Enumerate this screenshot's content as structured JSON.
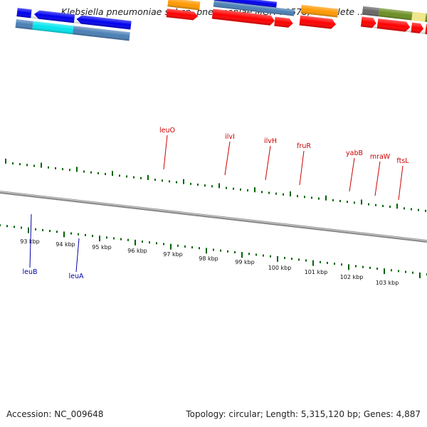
{
  "title": "Klebsiella pneumoniae subsp. pneumoniae MGH 78578, complete ...",
  "footer": {
    "accession": "Accession: NC_009648",
    "summary": "Topology: circular; Length: 5,315,120 bp; Genes: 4,887"
  },
  "scale": {
    "ticks": [
      {
        "label": "93 kbp"
      },
      {
        "label": "94 kbp"
      },
      {
        "label": "95 kbp"
      },
      {
        "label": "96 kbp"
      },
      {
        "label": "97 kbp"
      },
      {
        "label": "98 kbp"
      },
      {
        "label": "99 kbp"
      },
      {
        "label": "100 kbp"
      },
      {
        "label": "101 kbp"
      },
      {
        "label": "102 kbp"
      },
      {
        "label": "103 kbp"
      }
    ]
  },
  "gene_labels": {
    "top": [
      {
        "name": "leuO",
        "color": "#cc0000"
      },
      {
        "name": "ilvI",
        "color": "#cc0000"
      },
      {
        "name": "ilvH",
        "color": "#cc0000"
      },
      {
        "name": "fruR",
        "color": "#cc0000"
      },
      {
        "name": "yabB",
        "color": "#cc0000"
      },
      {
        "name": "mraW",
        "color": "#cc0000"
      },
      {
        "name": "ftsL",
        "color": "#cc0000"
      }
    ],
    "bottom": [
      {
        "name": "leuB",
        "color": "#0000aa"
      },
      {
        "name": "leuA",
        "color": "#0000aa"
      }
    ]
  },
  "colors": {
    "cds": "#ff0000",
    "gene_blue": "#0000ee",
    "steel": "#4a7fb5",
    "cyan": "#00e5ee",
    "orange": "#ff9900",
    "olive": "#6b8e23",
    "khaki": "#f0e68c",
    "gray": "#666666",
    "tick_green": "#006400",
    "backbone": "#888888"
  }
}
